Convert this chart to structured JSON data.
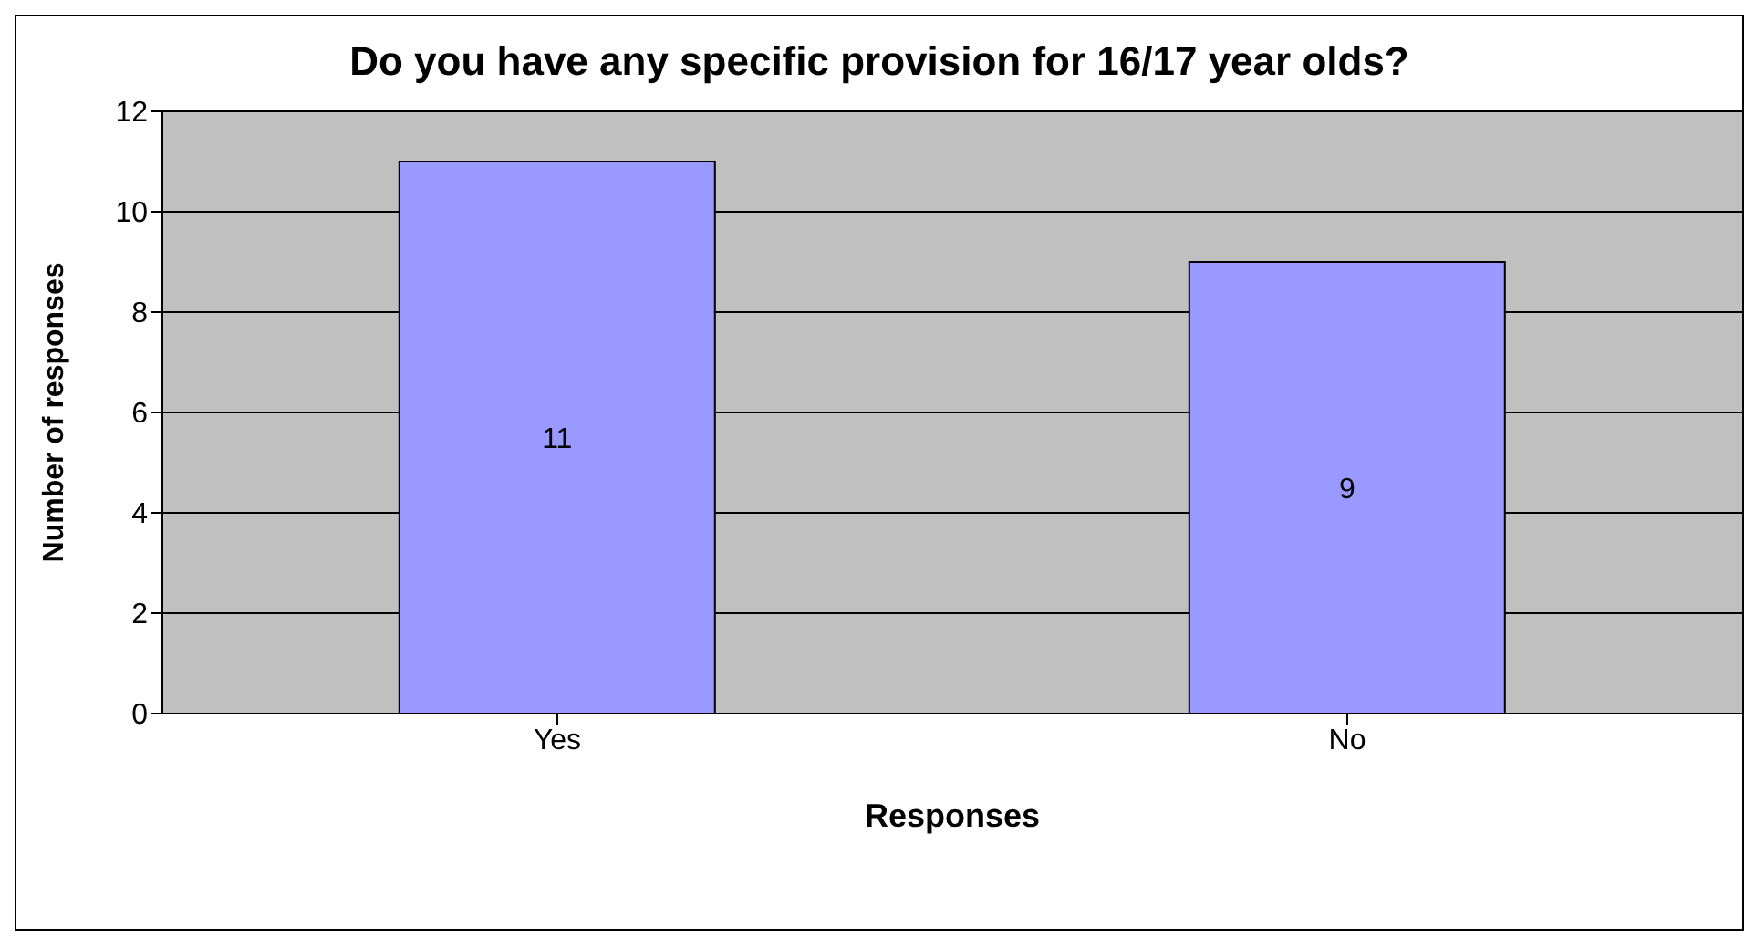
{
  "chart_data": {
    "type": "bar",
    "title": "Do you have any specific provision for 16/17 year olds?",
    "xlabel": "Responses",
    "ylabel": "Number of responses",
    "categories": [
      "Yes",
      "No"
    ],
    "values": [
      11,
      9
    ],
    "color": "#9999ff",
    "ylim": [
      0,
      12
    ],
    "yticks": [
      0,
      2,
      4,
      6,
      8,
      10,
      12
    ],
    "grid": "y",
    "data_labels": true
  }
}
